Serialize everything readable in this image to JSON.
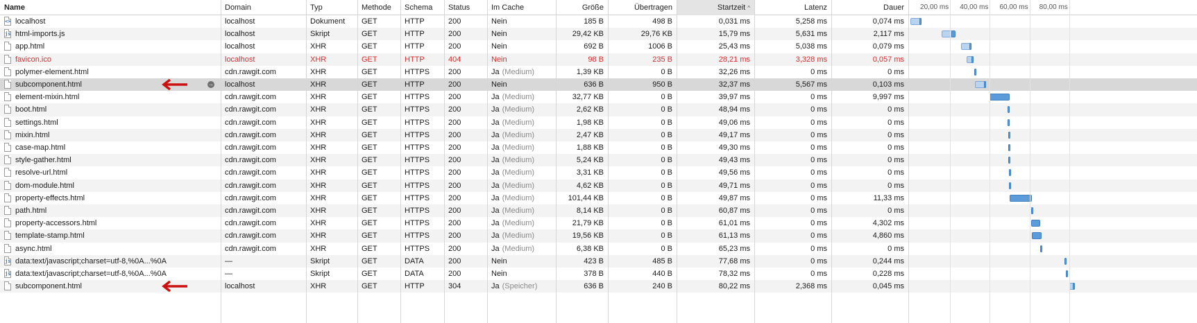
{
  "columns": {
    "name": "Name",
    "domain": "Domain",
    "type": "Typ",
    "method": "Methode",
    "scheme": "Schema",
    "status": "Status",
    "cached": "Im Cache",
    "size": "Größe",
    "transferred": "Übertragen",
    "start": "Startzeit",
    "latency": "Latenz",
    "duration": "Dauer"
  },
  "sort": {
    "column": "start",
    "direction": "ascending",
    "arrow": "^"
  },
  "waterfall": {
    "ticks": [
      "20,00 ms",
      "40,00 ms",
      "60,00 ms",
      "80,00 ms"
    ],
    "tick_values_ms": [
      20,
      40,
      60,
      80
    ]
  },
  "rows": [
    {
      "name": "localhost",
      "icon": "document-icon",
      "domain": "localhost",
      "type": "Dokument",
      "method": "GET",
      "scheme": "HTTP",
      "status": "200",
      "cached": "Nein",
      "cached_note": "",
      "size": "185 B",
      "transferred": "498 B",
      "start": "0,031 ms",
      "latency": "5,258 ms",
      "duration": "0,074 ms",
      "start_ms": 0.031,
      "latency_ms": 5.258,
      "duration_ms": 0.074,
      "error": false,
      "selected": false,
      "arrow": false
    },
    {
      "name": "html-imports.js",
      "icon": "script-icon",
      "domain": "localhost",
      "type": "Skript",
      "method": "GET",
      "scheme": "HTTP",
      "status": "200",
      "cached": "Nein",
      "cached_note": "",
      "size": "29,42 KB",
      "transferred": "29,76 KB",
      "start": "15,79 ms",
      "latency": "5,631 ms",
      "duration": "2,117 ms",
      "start_ms": 15.79,
      "latency_ms": 5.631,
      "duration_ms": 2.117,
      "error": false,
      "selected": false,
      "arrow": false
    },
    {
      "name": "app.html",
      "icon": "file-icon",
      "domain": "localhost",
      "type": "XHR",
      "method": "GET",
      "scheme": "HTTP",
      "status": "200",
      "cached": "Nein",
      "cached_note": "",
      "size": "692 B",
      "transferred": "1006 B",
      "start": "25,43 ms",
      "latency": "5,038 ms",
      "duration": "0,079 ms",
      "start_ms": 25.43,
      "latency_ms": 5.038,
      "duration_ms": 0.079,
      "error": false,
      "selected": false,
      "arrow": false
    },
    {
      "name": "favicon.ico",
      "icon": "file-icon",
      "domain": "localhost",
      "type": "XHR",
      "method": "GET",
      "scheme": "HTTP",
      "status": "404",
      "cached": "Nein",
      "cached_note": "",
      "size": "98 B",
      "transferred": "235 B",
      "start": "28,21 ms",
      "latency": "3,328 ms",
      "duration": "0,057 ms",
      "start_ms": 28.21,
      "latency_ms": 3.328,
      "duration_ms": 0.057,
      "error": true,
      "selected": false,
      "arrow": false
    },
    {
      "name": "polymer-element.html",
      "icon": "file-icon",
      "domain": "cdn.rawgit.com",
      "type": "XHR",
      "method": "GET",
      "scheme": "HTTPS",
      "status": "200",
      "cached": "Ja",
      "cached_note": "(Medium)",
      "size": "1,39 KB",
      "transferred": "0 B",
      "start": "32,26 ms",
      "latency": "0 ms",
      "duration": "0 ms",
      "start_ms": 32.26,
      "latency_ms": 0,
      "duration_ms": 0,
      "error": false,
      "selected": false,
      "arrow": false
    },
    {
      "name": "subcomponent.html",
      "icon": "file-icon",
      "domain": "localhost",
      "type": "XHR",
      "method": "GET",
      "scheme": "HTTP",
      "status": "200",
      "cached": "Nein",
      "cached_note": "",
      "size": "636 B",
      "transferred": "950 B",
      "start": "32,37 ms",
      "latency": "5,567 ms",
      "duration": "0,103 ms",
      "start_ms": 32.37,
      "latency_ms": 5.567,
      "duration_ms": 0.103,
      "error": false,
      "selected": true,
      "arrow": true
    },
    {
      "name": "element-mixin.html",
      "icon": "file-icon",
      "domain": "cdn.rawgit.com",
      "type": "XHR",
      "method": "GET",
      "scheme": "HTTPS",
      "status": "200",
      "cached": "Ja",
      "cached_note": "(Medium)",
      "size": "32,77 KB",
      "transferred": "0 B",
      "start": "39,97 ms",
      "latency": "0 ms",
      "duration": "9,997 ms",
      "start_ms": 39.97,
      "latency_ms": 0,
      "duration_ms": 9.997,
      "error": false,
      "selected": false,
      "arrow": false
    },
    {
      "name": "boot.html",
      "icon": "file-icon",
      "domain": "cdn.rawgit.com",
      "type": "XHR",
      "method": "GET",
      "scheme": "HTTPS",
      "status": "200",
      "cached": "Ja",
      "cached_note": "(Medium)",
      "size": "2,62 KB",
      "transferred": "0 B",
      "start": "48,94 ms",
      "latency": "0 ms",
      "duration": "0 ms",
      "start_ms": 48.94,
      "latency_ms": 0,
      "duration_ms": 0,
      "error": false,
      "selected": false,
      "arrow": false
    },
    {
      "name": "settings.html",
      "icon": "file-icon",
      "domain": "cdn.rawgit.com",
      "type": "XHR",
      "method": "GET",
      "scheme": "HTTPS",
      "status": "200",
      "cached": "Ja",
      "cached_note": "(Medium)",
      "size": "1,98 KB",
      "transferred": "0 B",
      "start": "49,06 ms",
      "latency": "0 ms",
      "duration": "0 ms",
      "start_ms": 49.06,
      "latency_ms": 0,
      "duration_ms": 0,
      "error": false,
      "selected": false,
      "arrow": false
    },
    {
      "name": "mixin.html",
      "icon": "file-icon",
      "domain": "cdn.rawgit.com",
      "type": "XHR",
      "method": "GET",
      "scheme": "HTTPS",
      "status": "200",
      "cached": "Ja",
      "cached_note": "(Medium)",
      "size": "2,47 KB",
      "transferred": "0 B",
      "start": "49,17 ms",
      "latency": "0 ms",
      "duration": "0 ms",
      "start_ms": 49.17,
      "latency_ms": 0,
      "duration_ms": 0,
      "error": false,
      "selected": false,
      "arrow": false
    },
    {
      "name": "case-map.html",
      "icon": "file-icon",
      "domain": "cdn.rawgit.com",
      "type": "XHR",
      "method": "GET",
      "scheme": "HTTPS",
      "status": "200",
      "cached": "Ja",
      "cached_note": "(Medium)",
      "size": "1,88 KB",
      "transferred": "0 B",
      "start": "49,30 ms",
      "latency": "0 ms",
      "duration": "0 ms",
      "start_ms": 49.3,
      "latency_ms": 0,
      "duration_ms": 0,
      "error": false,
      "selected": false,
      "arrow": false
    },
    {
      "name": "style-gather.html",
      "icon": "file-icon",
      "domain": "cdn.rawgit.com",
      "type": "XHR",
      "method": "GET",
      "scheme": "HTTPS",
      "status": "200",
      "cached": "Ja",
      "cached_note": "(Medium)",
      "size": "5,24 KB",
      "transferred": "0 B",
      "start": "49,43 ms",
      "latency": "0 ms",
      "duration": "0 ms",
      "start_ms": 49.43,
      "latency_ms": 0,
      "duration_ms": 0,
      "error": false,
      "selected": false,
      "arrow": false
    },
    {
      "name": "resolve-url.html",
      "icon": "file-icon",
      "domain": "cdn.rawgit.com",
      "type": "XHR",
      "method": "GET",
      "scheme": "HTTPS",
      "status": "200",
      "cached": "Ja",
      "cached_note": "(Medium)",
      "size": "3,31 KB",
      "transferred": "0 B",
      "start": "49,56 ms",
      "latency": "0 ms",
      "duration": "0 ms",
      "start_ms": 49.56,
      "latency_ms": 0,
      "duration_ms": 0,
      "error": false,
      "selected": false,
      "arrow": false
    },
    {
      "name": "dom-module.html",
      "icon": "file-icon",
      "domain": "cdn.rawgit.com",
      "type": "XHR",
      "method": "GET",
      "scheme": "HTTPS",
      "status": "200",
      "cached": "Ja",
      "cached_note": "(Medium)",
      "size": "4,62 KB",
      "transferred": "0 B",
      "start": "49,71 ms",
      "latency": "0 ms",
      "duration": "0 ms",
      "start_ms": 49.71,
      "latency_ms": 0,
      "duration_ms": 0,
      "error": false,
      "selected": false,
      "arrow": false
    },
    {
      "name": "property-effects.html",
      "icon": "file-icon",
      "domain": "cdn.rawgit.com",
      "type": "XHR",
      "method": "GET",
      "scheme": "HTTPS",
      "status": "200",
      "cached": "Ja",
      "cached_note": "(Medium)",
      "size": "101,44 KB",
      "transferred": "0 B",
      "start": "49,87 ms",
      "latency": "0 ms",
      "duration": "11,33 ms",
      "start_ms": 49.87,
      "latency_ms": 0,
      "duration_ms": 11.33,
      "error": false,
      "selected": false,
      "arrow": false
    },
    {
      "name": "path.html",
      "icon": "file-icon",
      "domain": "cdn.rawgit.com",
      "type": "XHR",
      "method": "GET",
      "scheme": "HTTPS",
      "status": "200",
      "cached": "Ja",
      "cached_note": "(Medium)",
      "size": "8,14 KB",
      "transferred": "0 B",
      "start": "60,87 ms",
      "latency": "0 ms",
      "duration": "0 ms",
      "start_ms": 60.87,
      "latency_ms": 0,
      "duration_ms": 0,
      "error": false,
      "selected": false,
      "arrow": false
    },
    {
      "name": "property-accessors.html",
      "icon": "file-icon",
      "domain": "cdn.rawgit.com",
      "type": "XHR",
      "method": "GET",
      "scheme": "HTTPS",
      "status": "200",
      "cached": "Ja",
      "cached_note": "(Medium)",
      "size": "21,79 KB",
      "transferred": "0 B",
      "start": "61,01 ms",
      "latency": "0 ms",
      "duration": "4,302 ms",
      "start_ms": 61.01,
      "latency_ms": 0,
      "duration_ms": 4.302,
      "error": false,
      "selected": false,
      "arrow": false
    },
    {
      "name": "template-stamp.html",
      "icon": "file-icon",
      "domain": "cdn.rawgit.com",
      "type": "XHR",
      "method": "GET",
      "scheme": "HTTPS",
      "status": "200",
      "cached": "Ja",
      "cached_note": "(Medium)",
      "size": "19,56 KB",
      "transferred": "0 B",
      "start": "61,13 ms",
      "latency": "0 ms",
      "duration": "4,860 ms",
      "start_ms": 61.13,
      "latency_ms": 0,
      "duration_ms": 4.86,
      "error": false,
      "selected": false,
      "arrow": false
    },
    {
      "name": "async.html",
      "icon": "file-icon",
      "domain": "cdn.rawgit.com",
      "type": "XHR",
      "method": "GET",
      "scheme": "HTTPS",
      "status": "200",
      "cached": "Ja",
      "cached_note": "(Medium)",
      "size": "6,38 KB",
      "transferred": "0 B",
      "start": "65,23 ms",
      "latency": "0 ms",
      "duration": "0 ms",
      "start_ms": 65.23,
      "latency_ms": 0,
      "duration_ms": 0,
      "error": false,
      "selected": false,
      "arrow": false
    },
    {
      "name": "data:text/javascript;charset=utf-8,%0A...%0A",
      "icon": "script-icon",
      "domain": "—",
      "type": "Skript",
      "method": "GET",
      "scheme": "DATA",
      "status": "200",
      "cached": "Nein",
      "cached_note": "",
      "size": "423 B",
      "transferred": "485 B",
      "start": "77,68 ms",
      "latency": "0 ms",
      "duration": "0,244 ms",
      "start_ms": 77.68,
      "latency_ms": 0,
      "duration_ms": 0.244,
      "error": false,
      "selected": false,
      "arrow": false
    },
    {
      "name": "data:text/javascript;charset=utf-8,%0A...%0A",
      "icon": "script-icon",
      "domain": "—",
      "type": "Skript",
      "method": "GET",
      "scheme": "DATA",
      "status": "200",
      "cached": "Nein",
      "cached_note": "",
      "size": "378 B",
      "transferred": "440 B",
      "start": "78,32 ms",
      "latency": "0 ms",
      "duration": "0,228 ms",
      "start_ms": 78.32,
      "latency_ms": 0,
      "duration_ms": 0.228,
      "error": false,
      "selected": false,
      "arrow": false
    },
    {
      "name": "subcomponent.html",
      "icon": "file-icon",
      "domain": "localhost",
      "type": "XHR",
      "method": "GET",
      "scheme": "HTTP",
      "status": "304",
      "cached": "Ja",
      "cached_note": "(Speicher)",
      "size": "636 B",
      "transferred": "240 B",
      "start": "80,22 ms",
      "latency": "2,368 ms",
      "duration": "0,045 ms",
      "start_ms": 80.22,
      "latency_ms": 2.368,
      "duration_ms": 0.045,
      "error": false,
      "selected": false,
      "arrow": true
    }
  ],
  "colors": {
    "error": "#d32f2f",
    "arrow": "#cc1111",
    "bar_wait": "#b9d4ef",
    "bar_receive": "#5b9bd9"
  }
}
